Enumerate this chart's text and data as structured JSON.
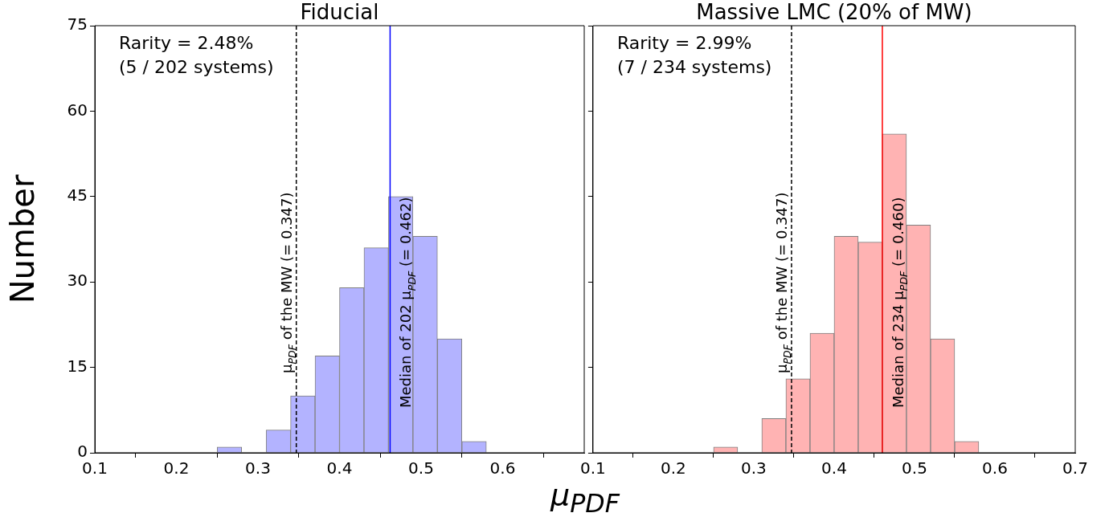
{
  "chart_data": [
    {
      "type": "histogram",
      "title": "Fiducial",
      "xlabel": "μ$_{PDF}$",
      "ylabel": "Number",
      "bins": [
        0.25,
        0.28,
        0.31,
        0.34,
        0.37,
        0.4,
        0.43,
        0.46,
        0.49,
        0.52,
        0.55,
        0.58
      ],
      "values": [
        1,
        0,
        4,
        10,
        17,
        29,
        36,
        45,
        38,
        20,
        2
      ],
      "color": "#b3b3ff",
      "xlim": [
        0.1,
        0.7
      ],
      "xticks": [
        0.1,
        0.2,
        0.3,
        0.4,
        0.5,
        0.6,
        {
          "value": 0.7,
          "label": null
        }
      ],
      "ylim": [
        0,
        75
      ],
      "yticks": [
        0,
        15,
        30,
        45,
        60,
        75
      ],
      "ref_lines": [
        {
          "axis": "x",
          "value": 0.347,
          "label": "μ$_{PDF}$ of the MW (= 0.347)",
          "color": "#000000",
          "line_style": "dashed"
        },
        {
          "axis": "x",
          "value": 0.462,
          "label": "Median of 202 μ$_{PDF}$ (= 0.462)",
          "color": "#0000ff",
          "line_style": "solid"
        }
      ],
      "annotations": [
        "Rarity = 2.48%",
        "(5 / 202 systems)"
      ]
    },
    {
      "type": "histogram",
      "title": "Massive LMC (20% of MW)",
      "bins": [
        0.25,
        0.28,
        0.31,
        0.34,
        0.37,
        0.4,
        0.43,
        0.46,
        0.49,
        0.52,
        0.55,
        0.58
      ],
      "values": [
        1,
        0,
        6,
        13,
        21,
        38,
        37,
        56,
        40,
        20,
        2
      ],
      "color": "#ffb3b3",
      "xlim": [
        0.1,
        0.7
      ],
      "xticks": [
        0.1,
        0.2,
        0.3,
        0.4,
        0.5,
        0.6,
        0.7
      ],
      "ylim": [
        0,
        75
      ],
      "yticks": [
        0,
        15,
        30,
        45,
        60,
        75
      ],
      "tick_labels": "x",
      "ref_lines": [
        {
          "axis": "x",
          "value": 0.347,
          "label": "μ$_{PDF}$ of the MW (= 0.347)",
          "color": "#000000",
          "line_style": "dashed"
        },
        {
          "axis": "x",
          "value": 0.46,
          "label": "Median of 234 μ$_{PDF}$ (= 0.460)",
          "color": "#ff0000",
          "line_style": "solid"
        }
      ],
      "annotations": [
        "Rarity = 2.99%",
        "(7 / 234 systems)"
      ]
    }
  ]
}
